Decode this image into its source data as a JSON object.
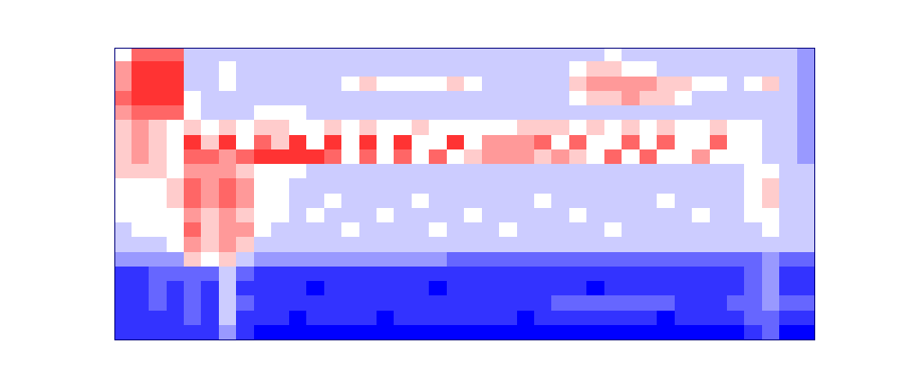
{
  "chart_data": {
    "type": "heatmap",
    "tick_labels": false,
    "color_range": [
      0,
      10
    ],
    "cells": [
      [
        5,
        8,
        8,
        8,
        4,
        4,
        4,
        4,
        4,
        4,
        4,
        4,
        4,
        4,
        4,
        4,
        4,
        4,
        4,
        4,
        4,
        4,
        4,
        4,
        4,
        4,
        4,
        4,
        5,
        4,
        4,
        4,
        4,
        4,
        4,
        4,
        4,
        4,
        4,
        3
      ],
      [
        7,
        9,
        9,
        9,
        4,
        4,
        5,
        4,
        4,
        4,
        4,
        4,
        4,
        4,
        4,
        4,
        4,
        4,
        4,
        4,
        4,
        4,
        4,
        4,
        4,
        4,
        5,
        6,
        6,
        5,
        5,
        4,
        4,
        4,
        4,
        4,
        4,
        4,
        4,
        3
      ],
      [
        7,
        9,
        9,
        9,
        4,
        4,
        5,
        4,
        4,
        4,
        4,
        4,
        4,
        5,
        6,
        5,
        5,
        5,
        5,
        6,
        5,
        4,
        4,
        4,
        4,
        4,
        6,
        7,
        7,
        7,
        7,
        6,
        6,
        5,
        5,
        4,
        5,
        6,
        4,
        3
      ],
      [
        8,
        9,
        9,
        9,
        5,
        4,
        4,
        4,
        4,
        4,
        4,
        4,
        4,
        4,
        4,
        4,
        4,
        4,
        4,
        4,
        4,
        4,
        4,
        4,
        4,
        4,
        5,
        6,
        6,
        7,
        6,
        6,
        5,
        4,
        4,
        4,
        4,
        4,
        4,
        3
      ],
      [
        7,
        8,
        8,
        8,
        5,
        4,
        4,
        4,
        5,
        5,
        5,
        4,
        4,
        4,
        4,
        4,
        4,
        4,
        4,
        4,
        4,
        4,
        4,
        4,
        4,
        4,
        4,
        4,
        4,
        4,
        4,
        4,
        4,
        4,
        4,
        4,
        4,
        4,
        4,
        3
      ],
      [
        6,
        7,
        6,
        5,
        6,
        5,
        6,
        5,
        6,
        6,
        5,
        5,
        6,
        5,
        6,
        5,
        5,
        6,
        5,
        5,
        5,
        5,
        5,
        6,
        6,
        6,
        5,
        6,
        5,
        6,
        5,
        6,
        5,
        5,
        6,
        5,
        5,
        4,
        4,
        3
      ],
      [
        6,
        7,
        6,
        5,
        9,
        6,
        9,
        5,
        8,
        6,
        9,
        5,
        9,
        5,
        9,
        5,
        9,
        5,
        5,
        9,
        5,
        7,
        7,
        7,
        8,
        5,
        8,
        5,
        5,
        8,
        5,
        8,
        5,
        5,
        8,
        5,
        5,
        4,
        4,
        3
      ],
      [
        6,
        7,
        6,
        5,
        8,
        8,
        7,
        8,
        9,
        9,
        9,
        9,
        8,
        5,
        8,
        5,
        8,
        5,
        8,
        5,
        6,
        7,
        7,
        7,
        6,
        7,
        6,
        5,
        8,
        5,
        8,
        5,
        5,
        7,
        5,
        5,
        5,
        4,
        4,
        3
      ],
      [
        6,
        6,
        6,
        5,
        7,
        7,
        7,
        6,
        5,
        5,
        5,
        4,
        4,
        4,
        4,
        4,
        4,
        4,
        4,
        4,
        4,
        4,
        4,
        4,
        4,
        4,
        4,
        4,
        4,
        4,
        4,
        4,
        4,
        4,
        4,
        4,
        5,
        5,
        4,
        4
      ],
      [
        5,
        5,
        5,
        6,
        8,
        7,
        8,
        7,
        5,
        5,
        4,
        4,
        4,
        4,
        4,
        4,
        4,
        4,
        4,
        4,
        4,
        4,
        4,
        4,
        4,
        4,
        4,
        4,
        4,
        4,
        4,
        4,
        4,
        4,
        4,
        4,
        5,
        6,
        4,
        4
      ],
      [
        5,
        5,
        5,
        6,
        8,
        7,
        8,
        7,
        5,
        5,
        4,
        4,
        5,
        4,
        4,
        4,
        4,
        5,
        4,
        4,
        4,
        4,
        4,
        4,
        5,
        4,
        4,
        4,
        4,
        4,
        4,
        5,
        4,
        4,
        4,
        4,
        5,
        6,
        4,
        4
      ],
      [
        5,
        5,
        5,
        5,
        7,
        6,
        7,
        6,
        5,
        5,
        4,
        5,
        4,
        4,
        4,
        5,
        4,
        4,
        4,
        4,
        5,
        4,
        4,
        4,
        4,
        4,
        5,
        4,
        4,
        4,
        4,
        4,
        4,
        5,
        4,
        4,
        5,
        5,
        4,
        4
      ],
      [
        4,
        5,
        5,
        5,
        8,
        6,
        7,
        7,
        5,
        4,
        4,
        4,
        4,
        5,
        4,
        4,
        4,
        4,
        5,
        4,
        4,
        4,
        5,
        4,
        4,
        4,
        4,
        4,
        5,
        4,
        4,
        4,
        4,
        4,
        4,
        4,
        4,
        5,
        4,
        4
      ],
      [
        4,
        4,
        4,
        5,
        7,
        6,
        7,
        6,
        4,
        4,
        4,
        4,
        4,
        4,
        4,
        4,
        4,
        4,
        4,
        4,
        4,
        4,
        4,
        4,
        4,
        4,
        4,
        4,
        4,
        4,
        4,
        4,
        4,
        4,
        4,
        4,
        4,
        4,
        4,
        4
      ],
      [
        3,
        3,
        3,
        3,
        6,
        5,
        6,
        4,
        3,
        3,
        3,
        3,
        3,
        3,
        3,
        3,
        3,
        3,
        3,
        2,
        2,
        2,
        2,
        2,
        2,
        2,
        2,
        2,
        2,
        2,
        2,
        2,
        2,
        2,
        2,
        2,
        2,
        3,
        2,
        2
      ],
      [
        1,
        1,
        2,
        2,
        2,
        2,
        4,
        2,
        1,
        1,
        1,
        1,
        1,
        1,
        1,
        1,
        1,
        1,
        1,
        1,
        1,
        1,
        1,
        1,
        1,
        1,
        1,
        1,
        1,
        1,
        1,
        1,
        1,
        1,
        1,
        1,
        2,
        3,
        1,
        1
      ],
      [
        1,
        1,
        2,
        1,
        2,
        1,
        4,
        1,
        1,
        1,
        1,
        0,
        1,
        1,
        1,
        1,
        1,
        1,
        0,
        1,
        1,
        1,
        1,
        1,
        1,
        1,
        1,
        0,
        1,
        1,
        1,
        1,
        1,
        1,
        1,
        1,
        2,
        3,
        1,
        1
      ],
      [
        1,
        1,
        2,
        1,
        2,
        1,
        4,
        2,
        1,
        1,
        1,
        1,
        1,
        1,
        1,
        1,
        1,
        1,
        1,
        1,
        1,
        1,
        1,
        1,
        1,
        2,
        2,
        2,
        2,
        2,
        2,
        2,
        1,
        1,
        1,
        2,
        2,
        3,
        2,
        2
      ],
      [
        1,
        1,
        1,
        1,
        2,
        1,
        4,
        1,
        1,
        1,
        0,
        1,
        1,
        1,
        1,
        0,
        1,
        1,
        1,
        1,
        1,
        1,
        1,
        0,
        1,
        1,
        1,
        1,
        1,
        1,
        1,
        0,
        1,
        1,
        1,
        1,
        2,
        2,
        1,
        1
      ],
      [
        1,
        1,
        1,
        1,
        1,
        1,
        3,
        1,
        0,
        0,
        0,
        0,
        0,
        0,
        0,
        0,
        0,
        0,
        0,
        0,
        0,
        0,
        0,
        0,
        0,
        0,
        0,
        0,
        0,
        0,
        0,
        0,
        0,
        0,
        0,
        0,
        1,
        2,
        0,
        0
      ]
    ]
  }
}
